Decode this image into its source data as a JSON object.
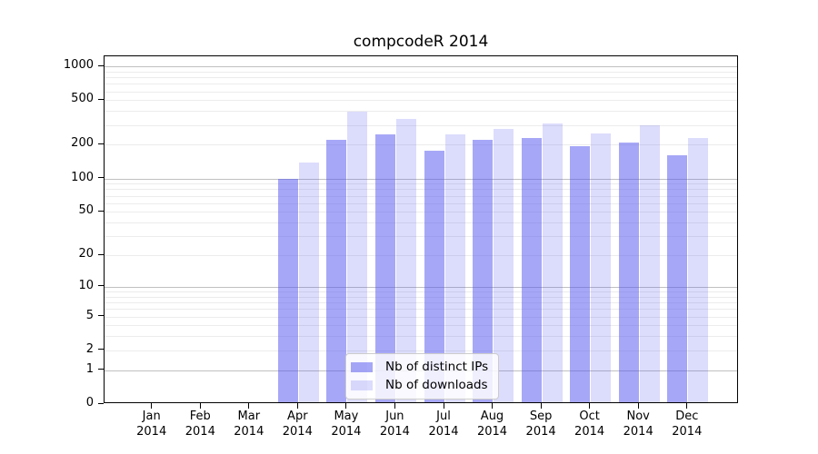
{
  "chart_data": {
    "type": "bar",
    "title": "compcodeR 2014",
    "x_tick_months": [
      "Jan",
      "Feb",
      "Mar",
      "Apr",
      "May",
      "Jun",
      "Jul",
      "Aug",
      "Sep",
      "Oct",
      "Nov",
      "Dec"
    ],
    "x_tick_year": "2014",
    "series": [
      {
        "name": "Nb of distinct IPs",
        "color_rgba": "rgba(80,80,240,0.5)",
        "values": [
          0,
          0,
          0,
          95,
          215,
          240,
          170,
          215,
          220,
          186,
          200,
          155
        ]
      },
      {
        "name": "Nb of downloads",
        "color_rgba": "rgba(80,80,240,0.2)",
        "values": [
          0,
          0,
          0,
          134,
          380,
          325,
          240,
          265,
          300,
          245,
          287,
          220
        ]
      }
    ],
    "yscale": "log1p",
    "ylim": [
      0,
      1000
    ],
    "ytick_values": [
      0,
      1,
      2,
      5,
      10,
      20,
      50,
      100,
      200,
      500,
      1000
    ],
    "ytick_labels": [
      "0",
      "1",
      "2",
      "5",
      "10",
      "20",
      "50",
      "100",
      "200",
      "500",
      "1000"
    ],
    "grid": true,
    "legend_position": "lower center inside",
    "colors": {
      "bar_dark": "#a8a8f7",
      "bar_light": "#dcdcfc",
      "major_grid": "#c0c0c0",
      "minor_grid": "#ececec",
      "spine": "#000000",
      "legend_border": "#cccccc",
      "text": "#000000",
      "background": "#ffffff"
    }
  }
}
